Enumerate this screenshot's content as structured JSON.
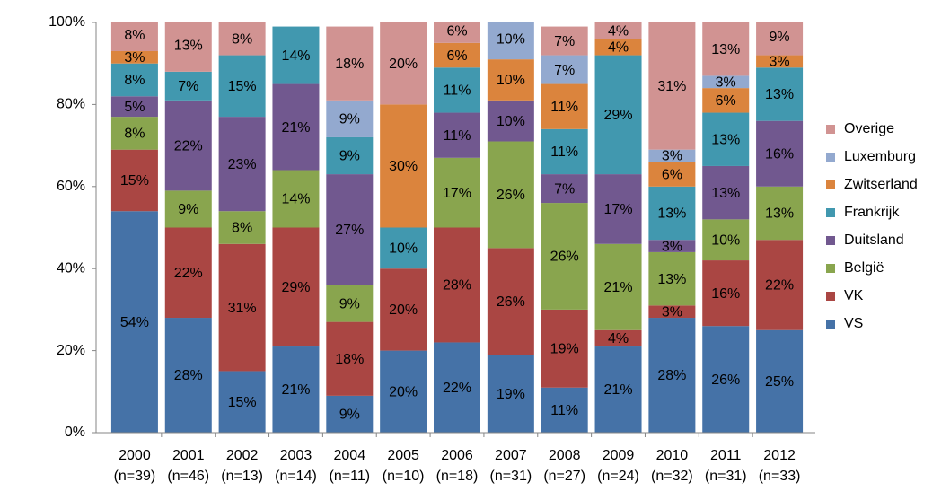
{
  "chart_data": {
    "type": "stacked_bar",
    "categories": [
      "2000",
      "2001",
      "2002",
      "2003",
      "2004",
      "2005",
      "2006",
      "2007",
      "2008",
      "2009",
      "2010",
      "2011",
      "2012"
    ],
    "category_subtitles": [
      "(n=39)",
      "(n=46)",
      "(n=13)",
      "(n=14)",
      "(n=11)",
      "(n=10)",
      "(n=18)",
      "(n=31)",
      "(n=27)",
      "(n=24)",
      "(n=32)",
      "(n=31)",
      "(n=33)"
    ],
    "ylim": [
      0,
      100
    ],
    "yticks": [
      {
        "value": 0,
        "label": "0%"
      },
      {
        "value": 20,
        "label": "20%"
      },
      {
        "value": 40,
        "label": "40%"
      },
      {
        "value": 60,
        "label": "60%"
      },
      {
        "value": 80,
        "label": "80%"
      },
      {
        "value": 100,
        "label": "100%"
      }
    ],
    "legend": "right",
    "series": [
      {
        "name": "VS",
        "color": "#4572a7",
        "values": [
          54,
          28,
          15,
          21,
          9,
          20,
          22,
          19,
          11,
          21,
          28,
          26,
          25
        ],
        "value_labels": [
          "54%",
          "28%",
          "15%",
          "21%",
          "9%",
          "20%",
          "22%",
          "19%",
          "11%",
          "21%",
          "28%",
          "26%",
          "25%"
        ]
      },
      {
        "name": "VK",
        "color": "#aa4643",
        "values": [
          15,
          22,
          31,
          29,
          18,
          20,
          28,
          26,
          19,
          4,
          3,
          16,
          22
        ],
        "value_labels": [
          "15%",
          "22%",
          "31%",
          "29%",
          "18%",
          "20%",
          "28%",
          "26%",
          "19%",
          "4%",
          "3%",
          "16%",
          "22%"
        ]
      },
      {
        "name": "België",
        "color": "#89a54e",
        "values": [
          8,
          9,
          8,
          14,
          9,
          0,
          17,
          26,
          26,
          21,
          13,
          10,
          13
        ],
        "value_labels": [
          "8%",
          "9%",
          "8%",
          "14%",
          "9%",
          null,
          "17%",
          "26%",
          "26%",
          "21%",
          "13%",
          "10%",
          "13%"
        ]
      },
      {
        "name": "Duitsland",
        "color": "#71588f",
        "values": [
          5,
          22,
          23,
          21,
          27,
          0,
          11,
          10,
          7,
          17,
          3,
          13,
          16
        ],
        "value_labels": [
          "5%",
          "22%",
          "23%",
          "21%",
          "27%",
          null,
          "11%",
          "10%",
          "7%",
          "17%",
          "3%",
          "13%",
          "16%"
        ]
      },
      {
        "name": "Frankrijk",
        "color": "#4198af",
        "values": [
          8,
          7,
          15,
          14,
          9,
          10,
          11,
          0,
          11,
          29,
          13,
          13,
          13
        ],
        "value_labels": [
          "8%",
          "7%",
          "15%",
          "14%",
          "9%",
          "10%",
          "11%",
          null,
          "11%",
          "29%",
          "13%",
          "13%",
          "13%"
        ]
      },
      {
        "name": "Zwitserland",
        "color": "#db843d",
        "values": [
          3,
          0,
          0,
          0,
          0,
          30,
          6,
          10,
          11,
          4,
          6,
          6,
          3
        ],
        "value_labels": [
          "3%",
          null,
          null,
          null,
          null,
          "30%",
          "6%",
          "10%",
          "11%",
          "4%",
          "6%",
          "6%",
          "3%"
        ]
      },
      {
        "name": "Luxemburg",
        "color": "#93a9cf",
        "values": [
          0,
          0,
          0,
          0,
          9,
          0,
          0,
          10,
          7,
          0,
          3,
          3,
          0
        ],
        "value_labels": [
          null,
          null,
          null,
          null,
          "9%",
          null,
          null,
          "10%",
          "7%",
          null,
          "3%",
          "3%",
          null
        ]
      },
      {
        "name": "Overige",
        "color": "#d19392",
        "values": [
          8,
          13,
          8,
          0,
          18,
          20,
          6,
          0,
          7,
          4,
          31,
          13,
          9
        ],
        "value_labels": [
          "8%",
          "13%",
          "8%",
          null,
          "18%",
          "20%",
          "6%",
          null,
          "7%",
          "4%",
          "31%",
          "13%",
          "9%"
        ]
      }
    ]
  }
}
